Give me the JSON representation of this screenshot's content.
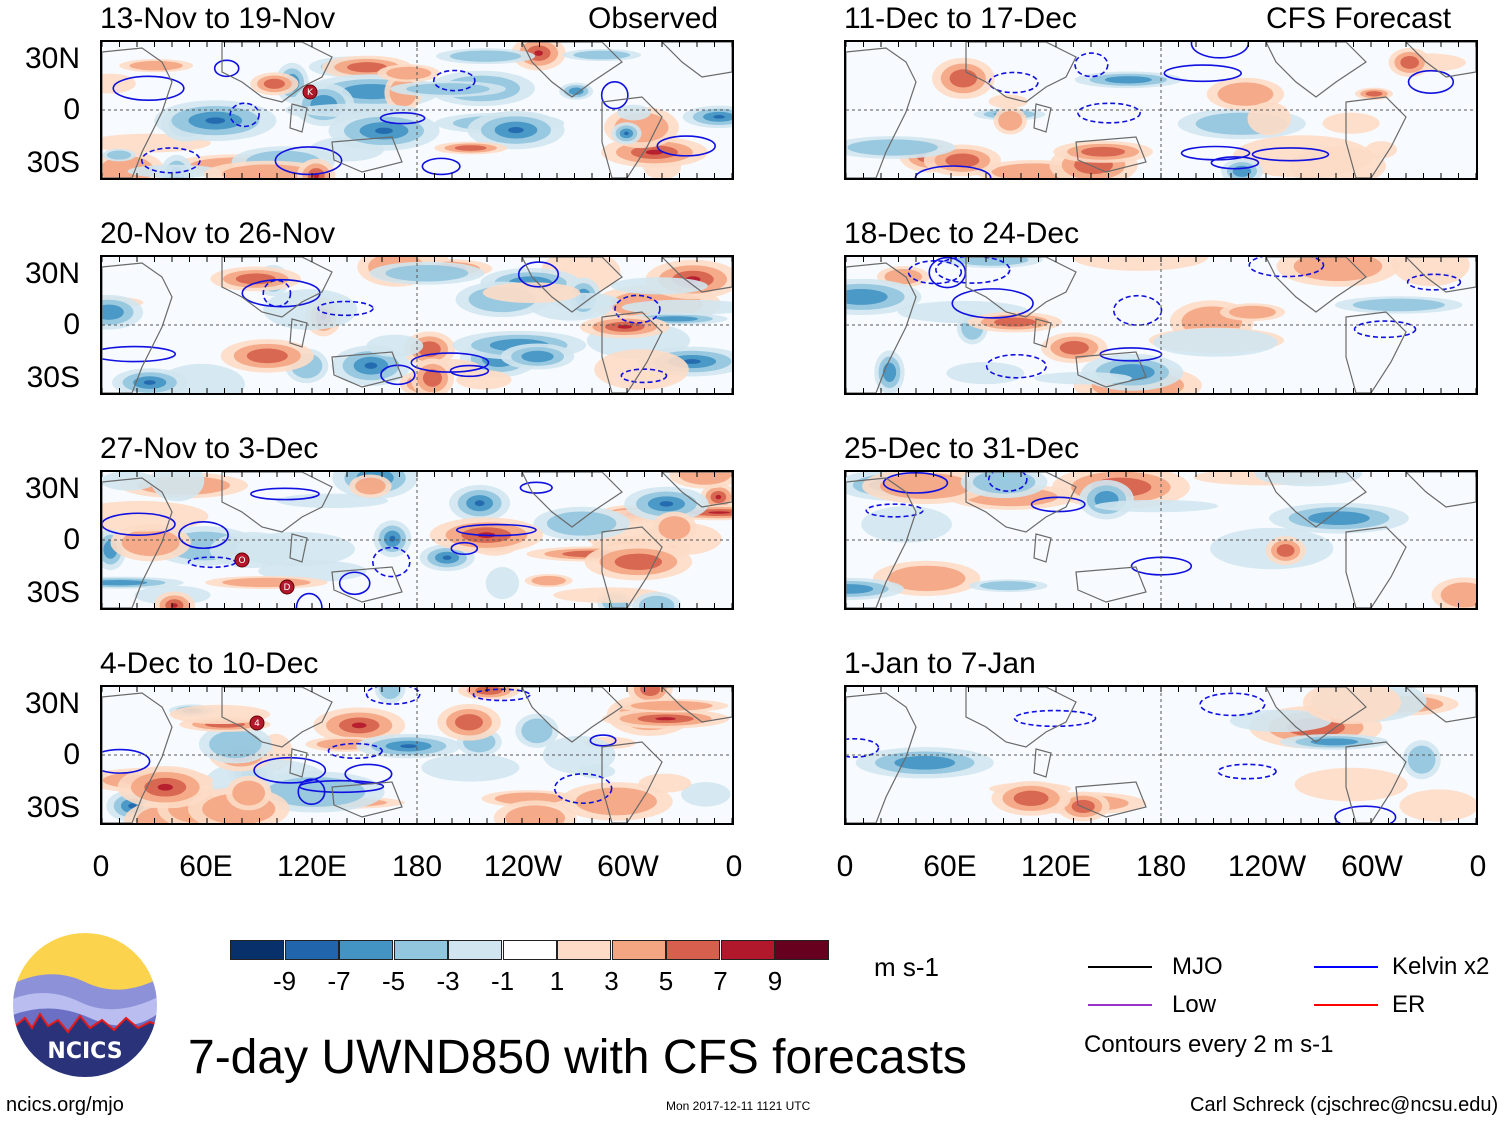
{
  "panels": [
    {
      "id": "p1",
      "title": "13-Nov to 19-Nov",
      "tag": "Observed",
      "marks": [
        "K"
      ]
    },
    {
      "id": "p2",
      "title": "20-Nov to 26-Nov",
      "tag": "",
      "marks": []
    },
    {
      "id": "p3",
      "title": "27-Nov to 3-Dec",
      "tag": "",
      "marks": [
        "O",
        "D"
      ]
    },
    {
      "id": "p4",
      "title": "4-Dec to 10-Dec",
      "tag": "",
      "marks": [
        "4"
      ]
    },
    {
      "id": "p5",
      "title": "11-Dec to 17-Dec",
      "tag": "CFS Forecast",
      "marks": []
    },
    {
      "id": "p6",
      "title": "18-Dec to 24-Dec",
      "tag": "",
      "marks": []
    },
    {
      "id": "p7",
      "title": "25-Dec to 31-Dec",
      "tag": "",
      "marks": []
    },
    {
      "id": "p8",
      "title": "1-Jan to 7-Jan",
      "tag": "",
      "marks": []
    }
  ],
  "y_axis_labels": [
    "30N",
    "0",
    "30S"
  ],
  "x_axis_labels": [
    "0",
    "60E",
    "120E",
    "180",
    "120W",
    "60W",
    "0"
  ],
  "colorbar": {
    "colors": [
      "#08306b",
      "#2166ac",
      "#4393c3",
      "#92c5de",
      "#d1e5f0",
      "#ffffff",
      "#fddbc7",
      "#f4a582",
      "#d6604d",
      "#b2182b",
      "#67001f"
    ],
    "labels": [
      "-9",
      "-7",
      "-5",
      "-3",
      "-1",
      "1",
      "3",
      "5",
      "7",
      "9"
    ],
    "units": "m s-1"
  },
  "legend": {
    "items": [
      {
        "name": "MJO",
        "color": "#000000"
      },
      {
        "name": "Kelvin x2",
        "color": "#0000ff"
      },
      {
        "name": "Low",
        "color": "#9933cc"
      },
      {
        "name": "ER",
        "color": "#ff0000"
      }
    ],
    "contour_note": "Contours every 2 m s-1"
  },
  "logo_text": "NCICS",
  "main_title": "7-day UWND850 with CFS forecasts",
  "footer": {
    "left": "ncics.org/mjo",
    "center": "Mon 2017-12-11 1121 UTC",
    "right": "Carl Schreck (cjschrec@ncsu.edu)"
  }
}
